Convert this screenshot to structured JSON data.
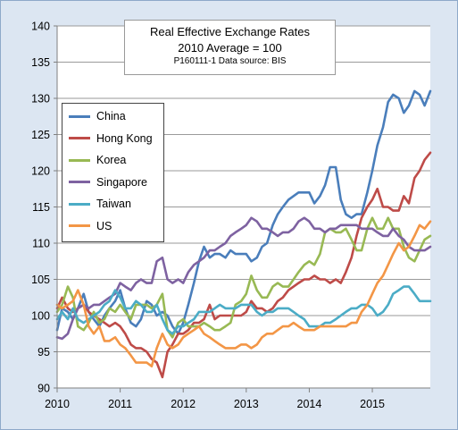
{
  "chart_data": {
    "type": "line",
    "title": "Real Effective Exchange Rates",
    "subtitle": "2010  Average = 100",
    "note": "P160111-1 Data source: BIS",
    "xlabel": "",
    "ylabel": "",
    "xlim": [
      2010,
      2015.92
    ],
    "ylim": [
      90,
      140
    ],
    "yticks": [
      90,
      95,
      100,
      105,
      110,
      115,
      120,
      125,
      130,
      135,
      140
    ],
    "xticks": [
      "2010",
      "2011",
      "2012",
      "2013",
      "2014",
      "2015"
    ],
    "grid": true,
    "legend_position": "left",
    "series": [
      {
        "name": "China",
        "color": "#4a7ebb",
        "x": [
          2010.0,
          2010.08,
          2010.17,
          2010.25,
          2010.33,
          2010.42,
          2010.5,
          2010.58,
          2010.67,
          2010.75,
          2010.83,
          2010.92,
          2011.0,
          2011.08,
          2011.17,
          2011.25,
          2011.33,
          2011.42,
          2011.5,
          2011.58,
          2011.67,
          2011.75,
          2011.83,
          2011.92,
          2012.0,
          2012.08,
          2012.17,
          2012.25,
          2012.33,
          2012.42,
          2012.5,
          2012.58,
          2012.67,
          2012.75,
          2012.83,
          2012.92,
          2013.0,
          2013.08,
          2013.17,
          2013.25,
          2013.33,
          2013.42,
          2013.5,
          2013.58,
          2013.67,
          2013.75,
          2013.83,
          2013.92,
          2014.0,
          2014.08,
          2014.17,
          2014.25,
          2014.33,
          2014.42,
          2014.5,
          2014.58,
          2014.67,
          2014.75,
          2014.83,
          2014.92,
          2015.0,
          2015.08,
          2015.17,
          2015.25,
          2015.33,
          2015.42,
          2015.5,
          2015.58,
          2015.67,
          2015.75,
          2015.83,
          2015.92
        ],
        "values": [
          98.0,
          101.0,
          100.5,
          99.5,
          101.0,
          103.0,
          100.5,
          99.5,
          98.5,
          100.0,
          101.0,
          102.0,
          103.5,
          101.0,
          99.0,
          98.5,
          99.5,
          102.0,
          101.5,
          100.0,
          100.5,
          100.0,
          98.5,
          97.5,
          99.0,
          101.5,
          104.5,
          107.5,
          109.5,
          108.0,
          108.5,
          108.5,
          108.0,
          109.0,
          108.5,
          108.5,
          108.5,
          107.5,
          108.0,
          109.5,
          110.0,
          112.5,
          114.0,
          115.0,
          116.0,
          116.5,
          117.0,
          117.0,
          117.0,
          115.5,
          116.5,
          118.0,
          120.5,
          120.5,
          116.0,
          114.0,
          113.5,
          114.0,
          114.0,
          117.0,
          120.0,
          123.5,
          126.0,
          129.5,
          130.5,
          130.0,
          128.0,
          129.0,
          131.0,
          130.5,
          129.0,
          131.0
        ]
      },
      {
        "name": "Hong Kong",
        "color": "#be4b48",
        "x": [
          2010.0,
          2010.08,
          2010.17,
          2010.25,
          2010.33,
          2010.42,
          2010.5,
          2010.58,
          2010.67,
          2010.75,
          2010.83,
          2010.92,
          2011.0,
          2011.08,
          2011.17,
          2011.25,
          2011.33,
          2011.42,
          2011.5,
          2011.58,
          2011.67,
          2011.75,
          2011.83,
          2011.92,
          2012.0,
          2012.08,
          2012.17,
          2012.25,
          2012.33,
          2012.42,
          2012.5,
          2012.58,
          2012.67,
          2012.75,
          2012.83,
          2012.92,
          2013.0,
          2013.08,
          2013.17,
          2013.25,
          2013.33,
          2013.42,
          2013.5,
          2013.58,
          2013.67,
          2013.75,
          2013.83,
          2013.92,
          2014.0,
          2014.08,
          2014.17,
          2014.25,
          2014.33,
          2014.42,
          2014.5,
          2014.58,
          2014.67,
          2014.75,
          2014.83,
          2014.92,
          2015.0,
          2015.08,
          2015.17,
          2015.25,
          2015.33,
          2015.42,
          2015.5,
          2015.58,
          2015.67,
          2015.75,
          2015.83,
          2015.92
        ],
        "values": [
          101.0,
          102.5,
          101.0,
          100.5,
          101.0,
          101.5,
          100.5,
          100.0,
          99.5,
          99.0,
          98.5,
          99.0,
          98.5,
          97.5,
          96.0,
          95.5,
          95.5,
          95.0,
          94.0,
          93.5,
          91.5,
          95.0,
          96.0,
          97.5,
          97.5,
          98.0,
          99.0,
          99.0,
          99.5,
          101.5,
          99.5,
          100.0,
          100.0,
          100.0,
          100.0,
          100.0,
          100.5,
          102.0,
          101.0,
          101.0,
          100.5,
          101.0,
          102.0,
          102.5,
          103.5,
          104.0,
          104.5,
          105.0,
          105.0,
          105.5,
          105.0,
          105.0,
          104.5,
          105.0,
          104.5,
          106.0,
          108.0,
          111.0,
          113.5,
          115.0,
          116.0,
          117.5,
          115.0,
          115.0,
          114.5,
          114.5,
          116.5,
          115.5,
          119.0,
          120.0,
          121.5,
          122.5
        ]
      },
      {
        "name": "Korea",
        "color": "#98b954",
        "x": [
          2010.0,
          2010.08,
          2010.17,
          2010.25,
          2010.33,
          2010.42,
          2010.5,
          2010.58,
          2010.67,
          2010.75,
          2010.83,
          2010.92,
          2011.0,
          2011.08,
          2011.17,
          2011.25,
          2011.33,
          2011.42,
          2011.5,
          2011.58,
          2011.67,
          2011.75,
          2011.83,
          2011.92,
          2012.0,
          2012.08,
          2012.17,
          2012.25,
          2012.33,
          2012.42,
          2012.5,
          2012.58,
          2012.67,
          2012.75,
          2012.83,
          2012.92,
          2013.0,
          2013.08,
          2013.17,
          2013.25,
          2013.33,
          2013.42,
          2013.5,
          2013.58,
          2013.67,
          2013.75,
          2013.83,
          2013.92,
          2014.0,
          2014.08,
          2014.17,
          2014.25,
          2014.33,
          2014.42,
          2014.5,
          2014.58,
          2014.67,
          2014.75,
          2014.83,
          2014.92,
          2015.0,
          2015.08,
          2015.17,
          2015.25,
          2015.33,
          2015.42,
          2015.5,
          2015.58,
          2015.67,
          2015.75,
          2015.83,
          2015.92
        ],
        "values": [
          100.5,
          101.5,
          104.0,
          102.5,
          98.5,
          98.0,
          99.0,
          100.5,
          99.0,
          99.5,
          101.0,
          100.5,
          101.5,
          100.5,
          99.5,
          101.5,
          101.5,
          101.5,
          101.0,
          101.5,
          103.0,
          98.0,
          97.0,
          99.0,
          99.5,
          98.5,
          98.5,
          98.5,
          99.0,
          98.5,
          98.0,
          98.0,
          98.5,
          99.0,
          101.5,
          102.0,
          103.0,
          105.5,
          103.5,
          102.5,
          102.5,
          104.0,
          104.5,
          104.0,
          104.0,
          105.0,
          106.0,
          107.0,
          107.5,
          107.0,
          108.5,
          111.5,
          112.0,
          111.5,
          111.5,
          112.0,
          110.5,
          109.0,
          109.0,
          112.0,
          113.5,
          112.0,
          112.0,
          113.5,
          112.0,
          112.0,
          109.5,
          108.0,
          107.5,
          109.0,
          110.5,
          111.0
        ]
      },
      {
        "name": "Singapore",
        "color": "#7e62a1",
        "x": [
          2010.0,
          2010.08,
          2010.17,
          2010.25,
          2010.33,
          2010.42,
          2010.5,
          2010.58,
          2010.67,
          2010.75,
          2010.83,
          2010.92,
          2011.0,
          2011.08,
          2011.17,
          2011.25,
          2011.33,
          2011.42,
          2011.5,
          2011.58,
          2011.67,
          2011.75,
          2011.83,
          2011.92,
          2012.0,
          2012.08,
          2012.17,
          2012.25,
          2012.33,
          2012.42,
          2012.5,
          2012.58,
          2012.67,
          2012.75,
          2012.83,
          2012.92,
          2013.0,
          2013.08,
          2013.17,
          2013.25,
          2013.33,
          2013.42,
          2013.5,
          2013.58,
          2013.67,
          2013.75,
          2013.83,
          2013.92,
          2014.0,
          2014.08,
          2014.17,
          2014.25,
          2014.33,
          2014.42,
          2014.5,
          2014.58,
          2014.67,
          2014.75,
          2014.83,
          2014.92,
          2015.0,
          2015.08,
          2015.17,
          2015.25,
          2015.33,
          2015.42,
          2015.5,
          2015.58,
          2015.67,
          2015.75,
          2015.83,
          2015.92
        ],
        "values": [
          97.0,
          96.8,
          97.5,
          99.5,
          101.0,
          101.5,
          101.0,
          101.5,
          101.5,
          102.0,
          102.5,
          103.0,
          104.5,
          104.0,
          103.5,
          104.5,
          105.0,
          104.5,
          104.5,
          107.5,
          108.0,
          105.0,
          104.5,
          105.0,
          104.5,
          106.0,
          107.0,
          107.5,
          108.0,
          109.0,
          109.0,
          109.5,
          110.0,
          111.0,
          111.5,
          112.0,
          112.5,
          113.5,
          113.0,
          112.0,
          112.0,
          111.5,
          111.0,
          111.5,
          111.5,
          112.0,
          113.0,
          113.5,
          113.0,
          112.0,
          112.0,
          111.5,
          112.0,
          112.0,
          112.5,
          112.5,
          112.5,
          112.5,
          112.0,
          112.0,
          112.0,
          111.5,
          111.0,
          111.0,
          112.0,
          111.0,
          110.5,
          109.5,
          109.0,
          109.0,
          109.0,
          109.5
        ]
      },
      {
        "name": "Taiwan",
        "color": "#4bacc6",
        "x": [
          2010.0,
          2010.08,
          2010.17,
          2010.25,
          2010.33,
          2010.42,
          2010.5,
          2010.58,
          2010.67,
          2010.75,
          2010.83,
          2010.92,
          2011.0,
          2011.08,
          2011.17,
          2011.25,
          2011.33,
          2011.42,
          2011.5,
          2011.58,
          2011.67,
          2011.75,
          2011.83,
          2011.92,
          2012.0,
          2012.08,
          2012.17,
          2012.25,
          2012.33,
          2012.42,
          2012.5,
          2012.58,
          2012.67,
          2012.75,
          2012.83,
          2012.92,
          2013.0,
          2013.08,
          2013.17,
          2013.25,
          2013.33,
          2013.42,
          2013.5,
          2013.58,
          2013.67,
          2013.75,
          2013.83,
          2013.92,
          2014.0,
          2014.08,
          2014.17,
          2014.25,
          2014.33,
          2014.42,
          2014.5,
          2014.58,
          2014.67,
          2014.75,
          2014.83,
          2014.92,
          2015.0,
          2015.08,
          2015.17,
          2015.25,
          2015.33,
          2015.42,
          2015.5,
          2015.58,
          2015.67,
          2015.75,
          2015.83,
          2015.92
        ],
        "values": [
          99.5,
          100.5,
          99.5,
          101.0,
          99.5,
          99.0,
          99.5,
          100.0,
          100.5,
          101.5,
          102.0,
          103.5,
          102.5,
          101.0,
          101.0,
          102.0,
          101.5,
          100.5,
          100.5,
          101.5,
          99.5,
          98.0,
          97.5,
          98.5,
          98.5,
          99.0,
          99.5,
          100.5,
          100.5,
          100.5,
          101.0,
          101.5,
          101.0,
          101.0,
          101.0,
          101.5,
          101.5,
          101.5,
          100.5,
          100.0,
          100.5,
          100.5,
          101.0,
          101.0,
          101.0,
          100.5,
          100.0,
          99.5,
          98.5,
          98.5,
          98.5,
          99.0,
          99.0,
          99.5,
          100.0,
          100.5,
          101.0,
          101.0,
          101.5,
          101.5,
          101.0,
          100.0,
          100.5,
          101.5,
          103.0,
          103.5,
          104.0,
          104.0,
          103.0,
          102.0,
          102.0,
          102.0
        ]
      },
      {
        "name": "US",
        "color": "#f39646",
        "x": [
          2010.0,
          2010.08,
          2010.17,
          2010.25,
          2010.33,
          2010.42,
          2010.5,
          2010.58,
          2010.67,
          2010.75,
          2010.83,
          2010.92,
          2011.0,
          2011.08,
          2011.17,
          2011.25,
          2011.33,
          2011.42,
          2011.5,
          2011.58,
          2011.67,
          2011.75,
          2011.83,
          2011.92,
          2012.0,
          2012.08,
          2012.17,
          2012.25,
          2012.33,
          2012.42,
          2012.5,
          2012.58,
          2012.67,
          2012.75,
          2012.83,
          2012.92,
          2013.0,
          2013.08,
          2013.17,
          2013.25,
          2013.33,
          2013.42,
          2013.5,
          2013.58,
          2013.67,
          2013.75,
          2013.83,
          2013.92,
          2014.0,
          2014.08,
          2014.17,
          2014.25,
          2014.33,
          2014.42,
          2014.5,
          2014.58,
          2014.67,
          2014.75,
          2014.83,
          2014.92,
          2015.0,
          2015.08,
          2015.17,
          2015.25,
          2015.33,
          2015.42,
          2015.5,
          2015.58,
          2015.67,
          2015.75,
          2015.83,
          2015.92
        ],
        "values": [
          101.5,
          101.0,
          101.5,
          102.0,
          103.5,
          101.5,
          98.5,
          97.5,
          98.5,
          96.5,
          96.5,
          97.0,
          96.0,
          95.5,
          94.5,
          93.5,
          93.5,
          93.5,
          93.0,
          95.5,
          97.5,
          96.0,
          95.5,
          96.0,
          97.0,
          97.5,
          98.0,
          98.5,
          97.5,
          97.0,
          96.5,
          96.0,
          95.5,
          95.5,
          95.5,
          96.0,
          96.0,
          95.5,
          96.0,
          97.0,
          97.5,
          97.5,
          98.0,
          98.5,
          98.5,
          99.0,
          98.5,
          98.0,
          98.0,
          98.0,
          98.5,
          98.5,
          98.5,
          98.5,
          98.5,
          98.5,
          99.0,
          99.0,
          100.5,
          101.5,
          103.0,
          104.5,
          105.5,
          107.0,
          108.5,
          110.0,
          109.0,
          109.5,
          111.0,
          112.5,
          112.0,
          113.0
        ]
      }
    ]
  }
}
